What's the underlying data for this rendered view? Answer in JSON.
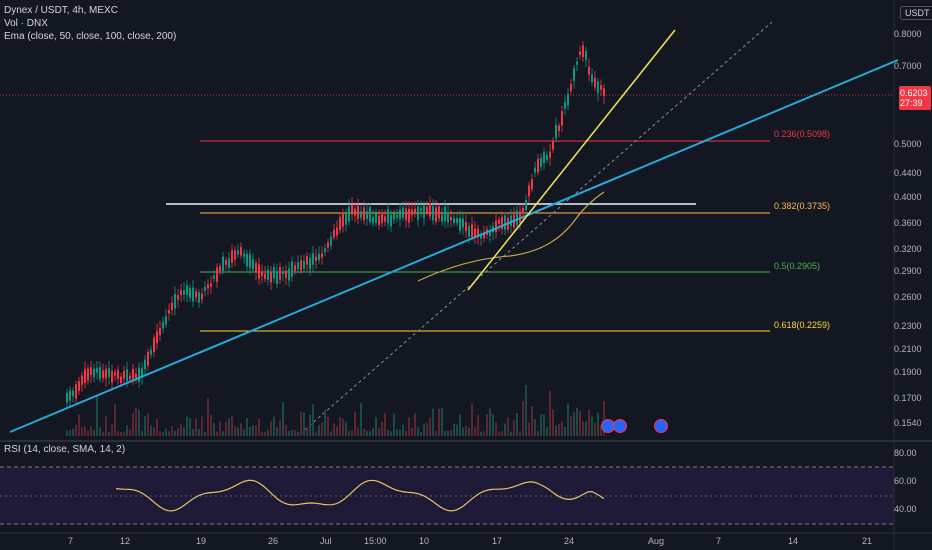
{
  "header": {
    "symbol": "Dynex / USDT, 4h, MEXC",
    "volume": "Vol · DNX",
    "ema": "Ema (close, 50, close, 100, close, 200)",
    "rsi": "RSI (14, close, SMA, 14, 2)"
  },
  "currency": "USDT",
  "price_axis": [
    "0.8000",
    "0.7000",
    "0.5000",
    "0.4400",
    "0.4000",
    "0.3600",
    "0.3200",
    "0.2900",
    "0.2600",
    "0.2300",
    "0.2100",
    "0.1900",
    "0.1700",
    "0.1540"
  ],
  "current_price": {
    "value": "0.6203",
    "countdown": "27:39",
    "color": "#f23645"
  },
  "rsi_axis": [
    "80.00",
    "60.00",
    "40.00"
  ],
  "time_axis": [
    "7",
    "12",
    "19",
    "26",
    "Jul",
    "15:00",
    "10",
    "17",
    "24",
    "Aug",
    "7",
    "14",
    "21"
  ],
  "fib_levels": [
    {
      "label": "0.236(0.5098)",
      "color": "#f23645"
    },
    {
      "label": "0.382(0.3735)",
      "color": "#ffb74d"
    },
    {
      "label": "0.5(0.2905)",
      "color": "#4caf50"
    },
    {
      "label": "0.618(0.2259)",
      "color": "#fdd835"
    }
  ],
  "colors": {
    "up": "#089981",
    "down": "#f23645",
    "trend": "#26a9d6",
    "steep": "#f0e45a",
    "support": "#ffffff",
    "ema": "#c4a54a",
    "rsi": "#e8c364"
  },
  "icons": [
    "event-flag-icon",
    "event-flag-icon",
    "event-flag-icon"
  ]
}
